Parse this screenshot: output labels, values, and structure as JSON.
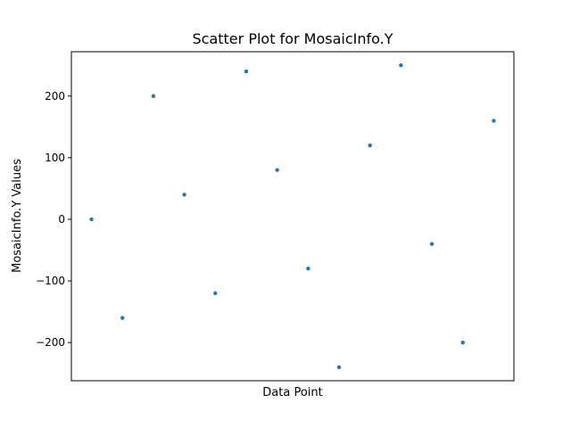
{
  "chart_data": {
    "type": "scatter",
    "title": "Scatter Plot for MosaicInfo.Y",
    "xlabel": "Data Point",
    "ylabel": "MosaicInfo.Y Values",
    "x": [
      0,
      1,
      2,
      3,
      4,
      5,
      6,
      7,
      8,
      9,
      10,
      11,
      12,
      13
    ],
    "y": [
      0,
      -160,
      200,
      40,
      -120,
      240,
      80,
      -80,
      -240,
      120,
      250,
      -40,
      -200,
      160
    ],
    "xlim": [
      -0.65,
      13.65
    ],
    "ylim": [
      -262,
      272
    ],
    "yticks": [
      -200,
      -100,
      0,
      100,
      200
    ],
    "ytick_labels": [
      "−200",
      "−100",
      "0",
      "100",
      "200"
    ],
    "show_xticks": false,
    "grid": false,
    "color": "#1f77b4"
  }
}
